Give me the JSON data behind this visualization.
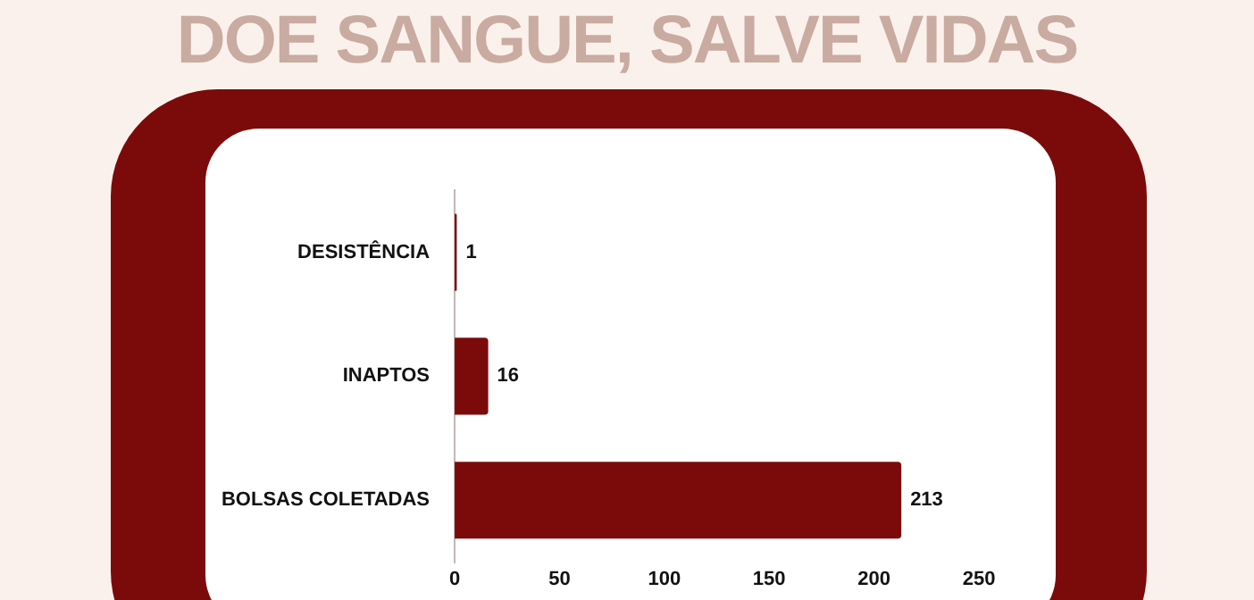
{
  "chart_data": {
    "type": "bar",
    "orientation": "horizontal",
    "title": "DOE SANGUE, SALVE VIDAS",
    "categories": [
      "DESISTÊNCIA",
      "INAPTOS",
      "BOLSAS COLETADAS"
    ],
    "values": [
      1,
      16,
      213
    ],
    "color": "#7b0b0b",
    "xlim": [
      0,
      250
    ],
    "xticks": [
      0,
      50,
      100,
      150,
      200,
      250
    ],
    "grid": false,
    "data_labels": true
  }
}
